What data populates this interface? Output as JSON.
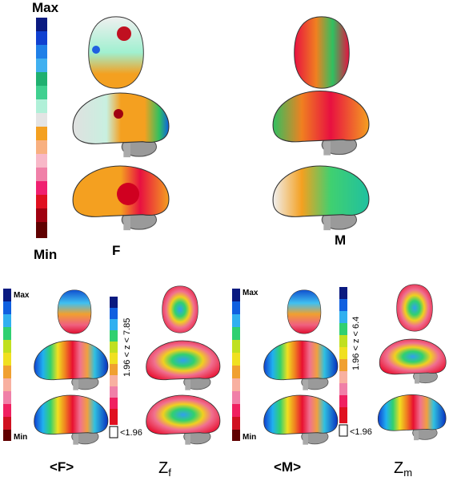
{
  "top": {
    "scale_max": "Max",
    "scale_min": "Min",
    "left_label": "F",
    "right_label": "M"
  },
  "bottom": [
    {
      "scale_max": "Max",
      "scale_min": "Min",
      "mean_label": "<F>",
      "z_label": "Z",
      "z_subscript": "f",
      "z_range": "1.96 < z < 7.85",
      "z_floor": "<1.96"
    },
    {
      "scale_max": "Max",
      "scale_min": "Min",
      "mean_label": "<M>",
      "z_label": "Z",
      "z_subscript": "m",
      "z_range": "1.96 < z < 6.4",
      "z_floor": "<1.96"
    }
  ]
}
